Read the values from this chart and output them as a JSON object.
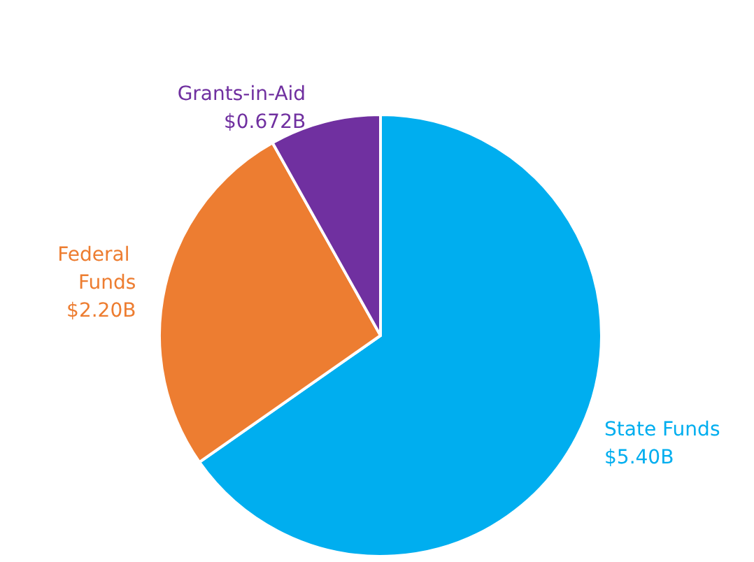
{
  "chart_data": {
    "type": "pie",
    "categories": [
      "State Funds",
      "Federal Funds",
      "Grants-in-Aid"
    ],
    "values": [
      5.4,
      2.2,
      0.672
    ],
    "value_labels": [
      "$5.40B",
      "$2.20B",
      "$0.672B"
    ],
    "colors": [
      "#00aeef",
      "#ed7d31",
      "#7030a0"
    ],
    "legend": false
  }
}
